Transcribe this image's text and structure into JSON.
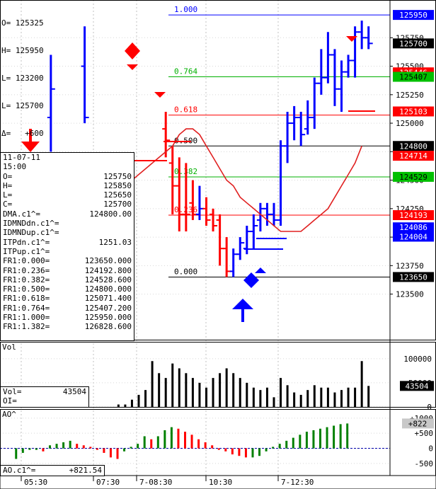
{
  "header": {
    "lines": [
      {
        "k": "O=",
        "v": "125325"
      },
      {
        "k": "H=",
        "v": "125950"
      },
      {
        "k": "L=",
        "v": "123200"
      },
      {
        "k": "L=",
        "v": "125700"
      },
      {
        "k": "Δ=",
        "v": "+600"
      }
    ]
  },
  "data_window": {
    "date": "11-07-11",
    "time": "15:00",
    "rows": [
      {
        "k": "O=",
        "v": "125750"
      },
      {
        "k": "H=",
        "v": "125850"
      },
      {
        "k": "L=",
        "v": "125650"
      },
      {
        "k": "C=",
        "v": "125700"
      },
      {
        "k": "DMA.c1^=",
        "v": "124800.00"
      },
      {
        "k": "IDMNDdn.c1^=",
        "v": ""
      },
      {
        "k": "IDMNDup.c1^=",
        "v": ""
      },
      {
        "k": "ITPdn.c1^=",
        "v": "1251.03"
      },
      {
        "k": "ITPup.c1^=",
        "v": ""
      },
      {
        "k": "FR1:0.000=",
        "v": "123650.000"
      },
      {
        "k": "FR1:0.236=",
        "v": "124192.800"
      },
      {
        "k": "FR1:0.382=",
        "v": "124528.600"
      },
      {
        "k": "FR1:0.500=",
        "v": "124800.000"
      },
      {
        "k": "FR1:0.618=",
        "v": "125071.400"
      },
      {
        "k": "FR1:0.764=",
        "v": "125407.200"
      },
      {
        "k": "FR1:1.000=",
        "v": "125950.000"
      },
      {
        "k": "FR1:1.382=",
        "v": "126828.600"
      }
    ]
  },
  "vol_box": {
    "rows": [
      {
        "k": "Vol=",
        "v": "43504"
      },
      {
        "k": "OI=",
        "v": ""
      }
    ]
  },
  "ao_box": {
    "k": "AO.c1^=",
    "v": "+821.54"
  },
  "chart_data": [
    {
      "type": "bar",
      "name": "price",
      "ylim": [
        123100,
        126050
      ],
      "y_ticks": [
        123500,
        123750,
        124000,
        124250,
        124500,
        124750,
        125000,
        125250,
        125500,
        125750
      ],
      "y_tick_labels": [
        "123500",
        "123750",
        "124000",
        "124250",
        "124500",
        "124750",
        "125000",
        "125250",
        "125500",
        "125750"
      ],
      "x_tick_labels": [
        "05:30",
        "07:30",
        "7-08:30",
        "10:30",
        "7-12:30"
      ],
      "bars": [
        {
          "x": 7,
          "o": 125050,
          "h": 125600,
          "l": 124750,
          "c": 125300,
          "color": "#0000ff"
        },
        {
          "x": 12,
          "o": 125500,
          "h": 125850,
          "l": 125000,
          "c": 125050,
          "color": "#0000ff"
        },
        {
          "x": 24,
          "o": 124950,
          "h": 125100,
          "l": 124700,
          "c": 124850,
          "color": "#ff0000"
        },
        {
          "x": 25,
          "o": 124650,
          "h": 124800,
          "l": 124200,
          "c": 124450,
          "color": "#ff0000"
        },
        {
          "x": 26,
          "o": 124450,
          "h": 124700,
          "l": 124050,
          "c": 124200,
          "color": "#ff0000"
        },
        {
          "x": 27,
          "o": 124200,
          "h": 124650,
          "l": 124050,
          "c": 124200,
          "color": "#ff0000"
        },
        {
          "x": 28,
          "o": 124300,
          "h": 124500,
          "l": 124150,
          "c": 124200,
          "color": "#ff0000"
        },
        {
          "x": 29,
          "o": 124200,
          "h": 124450,
          "l": 124150,
          "c": 124250,
          "color": "#0000ff"
        },
        {
          "x": 30,
          "o": 124250,
          "h": 124350,
          "l": 124100,
          "c": 124150,
          "color": "#ff0000"
        },
        {
          "x": 31,
          "o": 124200,
          "h": 124250,
          "l": 124050,
          "c": 124100,
          "color": "#ff0000"
        },
        {
          "x": 32,
          "o": 124150,
          "h": 124200,
          "l": 123750,
          "c": 123900,
          "color": "#ff0000"
        },
        {
          "x": 33,
          "o": 123900,
          "h": 124000,
          "l": 123650,
          "c": 123700,
          "color": "#ff0000"
        },
        {
          "x": 34,
          "o": 123700,
          "h": 123900,
          "l": 123650,
          "c": 123850,
          "color": "#0000ff"
        },
        {
          "x": 35,
          "o": 123850,
          "h": 124000,
          "l": 123800,
          "c": 123950,
          "color": "#0000ff"
        },
        {
          "x": 36,
          "o": 123900,
          "h": 124100,
          "l": 123850,
          "c": 124050,
          "color": "#0000ff"
        },
        {
          "x": 37,
          "o": 124050,
          "h": 124200,
          "l": 123900,
          "c": 124100,
          "color": "#0000ff"
        },
        {
          "x": 38,
          "o": 124150,
          "h": 124300,
          "l": 124050,
          "c": 124250,
          "color": "#0000ff"
        },
        {
          "x": 39,
          "o": 124250,
          "h": 124300,
          "l": 124100,
          "c": 124200,
          "color": "#0000ff"
        },
        {
          "x": 40,
          "o": 124200,
          "h": 124300,
          "l": 124100,
          "c": 124150,
          "color": "#0000ff"
        },
        {
          "x": 41,
          "o": 124150,
          "h": 124850,
          "l": 124100,
          "c": 124800,
          "color": "#0000ff"
        },
        {
          "x": 42,
          "o": 124800,
          "h": 125100,
          "l": 124650,
          "c": 125000,
          "color": "#0000ff"
        },
        {
          "x": 43,
          "o": 125000,
          "h": 125150,
          "l": 124850,
          "c": 125050,
          "color": "#0000ff"
        },
        {
          "x": 44,
          "o": 125050,
          "h": 125100,
          "l": 124800,
          "c": 124900,
          "color": "#0000ff"
        },
        {
          "x": 45,
          "o": 124950,
          "h": 125200,
          "l": 124900,
          "c": 125050,
          "color": "#0000ff"
        },
        {
          "x": 46,
          "o": 125050,
          "h": 125400,
          "l": 124950,
          "c": 125350,
          "color": "#0000ff"
        },
        {
          "x": 47,
          "o": 125350,
          "h": 125650,
          "l": 125250,
          "c": 125400,
          "color": "#0000ff"
        },
        {
          "x": 48,
          "o": 125400,
          "h": 125800,
          "l": 125350,
          "c": 125600,
          "color": "#0000ff"
        },
        {
          "x": 49,
          "o": 125600,
          "h": 125650,
          "l": 125150,
          "c": 125300,
          "color": "#0000ff"
        },
        {
          "x": 50,
          "o": 125300,
          "h": 125550,
          "l": 125100,
          "c": 125450,
          "color": "#0000ff"
        },
        {
          "x": 51,
          "o": 125450,
          "h": 125600,
          "l": 125400,
          "c": 125550,
          "color": "#0000ff"
        },
        {
          "x": 52,
          "o": 125550,
          "h": 125850,
          "l": 125400,
          "c": 125800,
          "color": "#0000ff"
        },
        {
          "x": 53,
          "o": 125800,
          "h": 125900,
          "l": 125650,
          "c": 125750,
          "color": "#0000ff"
        },
        {
          "x": 54,
          "o": 125750,
          "h": 125850,
          "l": 125650,
          "c": 125700,
          "color": "#0000ff"
        }
      ],
      "fib_levels": [
        {
          "label": "1.000",
          "value": 125950,
          "color": "#0000ff"
        },
        {
          "label": "0.764",
          "value": 125407.2,
          "color": "#00b000"
        },
        {
          "label": "0.618",
          "value": 125071.4,
          "color": "#ff0000"
        },
        {
          "label": "0.500",
          "value": 124800,
          "color": "#000000"
        },
        {
          "label": "0.382",
          "value": 124528.6,
          "color": "#00b000"
        },
        {
          "label": "0.236",
          "value": 124192.8,
          "color": "#ff0000"
        },
        {
          "label": "0.000",
          "value": 123650,
          "color": "#000000"
        }
      ],
      "price_tags": [
        {
          "text": "125950",
          "value": 125950,
          "bg": "#0000ff",
          "fg": "#ffffff"
        },
        {
          "text": "125700",
          "value": 125700,
          "bg": "#000000",
          "fg": "#ffffff"
        },
        {
          "text": "125446",
          "value": 125446,
          "bg": "#ff0000",
          "fg": "#ffffff"
        },
        {
          "text": "125407",
          "value": 125407,
          "bg": "#00c000",
          "fg": "#000000"
        },
        {
          "text": "125103",
          "value": 125103,
          "bg": "#ff0000",
          "fg": "#ffffff"
        },
        {
          "text": "124800",
          "value": 124800,
          "bg": "#000000",
          "fg": "#ffffff"
        },
        {
          "text": "124714",
          "value": 124714,
          "bg": "#ff0000",
          "fg": "#ffffff"
        },
        {
          "text": "124529",
          "value": 124529,
          "bg": "#00c000",
          "fg": "#000000"
        },
        {
          "text": "124193",
          "value": 124193,
          "bg": "#ff0000",
          "fg": "#ffffff"
        },
        {
          "text": "124086",
          "value": 124086,
          "bg": "#0000ff",
          "fg": "#ffffff"
        },
        {
          "text": "124004",
          "value": 124004,
          "bg": "#0000ff",
          "fg": "#ffffff"
        },
        {
          "text": "123650",
          "value": 123650,
          "bg": "#000000",
          "fg": "#ffffff"
        }
      ],
      "dma_line": [
        [
          17,
          124400
        ],
        [
          19,
          124500
        ],
        [
          21,
          124600
        ],
        [
          23,
          124700
        ],
        [
          25,
          124800
        ],
        [
          26,
          124900
        ],
        [
          27,
          124950
        ],
        [
          28,
          124950
        ],
        [
          29,
          124900
        ],
        [
          30,
          124800
        ],
        [
          31,
          124700
        ],
        [
          32,
          124600
        ],
        [
          33,
          124500
        ],
        [
          34,
          124450
        ],
        [
          35,
          124350
        ],
        [
          36,
          124300
        ],
        [
          37,
          124250
        ],
        [
          38,
          124200
        ],
        [
          39,
          124150
        ],
        [
          40,
          124100
        ],
        [
          41,
          124050
        ],
        [
          42,
          124050
        ],
        [
          43,
          124050
        ],
        [
          44,
          124050
        ],
        [
          45,
          124100
        ],
        [
          46,
          124150
        ],
        [
          47,
          124200
        ],
        [
          48,
          124250
        ],
        [
          49,
          124350
        ],
        [
          50,
          124450
        ],
        [
          51,
          124550
        ],
        [
          52,
          124650
        ],
        [
          53,
          124800
        ]
      ]
    },
    {
      "type": "bar",
      "name": "Vol",
      "ylim": [
        0,
        135000
      ],
      "y_ticks": [
        0,
        50000,
        100000
      ],
      "y_tick_labels": [
        "0",
        "50000",
        "100000"
      ],
      "values": [
        5000,
        5000,
        15000,
        25000,
        35000,
        95000,
        70000,
        60000,
        90000,
        80000,
        70000,
        60000,
        50000,
        40000,
        60000,
        70000,
        80000,
        70000,
        60000,
        50000,
        40000,
        35000,
        40000,
        20000,
        60000,
        45000,
        30000,
        25000,
        35000,
        45000,
        40000,
        40000,
        30000,
        35000,
        40000,
        40000,
        95000,
        43504
      ],
      "x_start": 17,
      "last_value_tag": "43504"
    },
    {
      "type": "bar",
      "name": "AO",
      "ylim": [
        -900,
        1300
      ],
      "y_ticks": [
        1000,
        500,
        0,
        -500
      ],
      "y_tick_labels": [
        "+1000",
        "+500",
        "0",
        "-500"
      ],
      "values": [
        -350,
        -150,
        -50,
        -50,
        -100,
        100,
        150,
        200,
        250,
        150,
        100,
        50,
        -50,
        -150,
        -300,
        -350,
        -100,
        50,
        150,
        400,
        300,
        400,
        600,
        700,
        650,
        550,
        450,
        300,
        200,
        100,
        -50,
        -100,
        -200,
        -250,
        -300,
        -300,
        -250,
        -100,
        50,
        150,
        250,
        350,
        450,
        550,
        600,
        650,
        700,
        750,
        800,
        822
      ],
      "x_start": 5,
      "last_value_tag": "+822"
    }
  ]
}
